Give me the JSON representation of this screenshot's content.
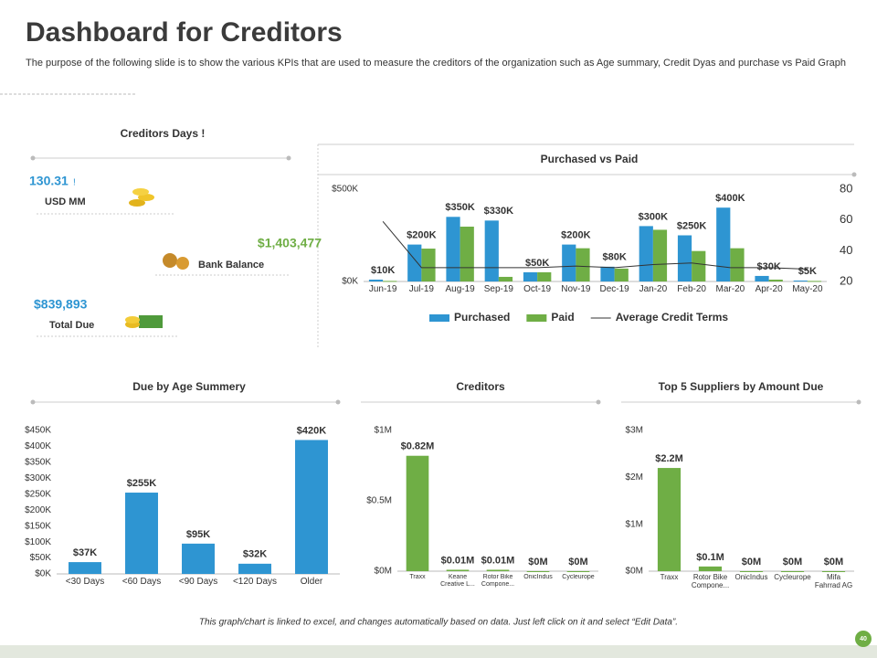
{
  "header": {
    "title": "Dashboard for Creditors",
    "subtitle": "The purpose of the following slide is to show the various KPIs that are used to measure the creditors of the organization such as Age summary, Credit Dyas and purchase vs Paid Graph"
  },
  "kpis": {
    "title": "Creditors Days !",
    "items": [
      {
        "value": "130.31",
        "mark": "!",
        "label": "USD MM"
      },
      {
        "value": "$1,403,477",
        "label": "Bank Balance"
      },
      {
        "value": "$839,893",
        "label": "Total Due"
      }
    ]
  },
  "chart_data": [
    {
      "type": "bar",
      "title": "Purchased vs Paid",
      "categories": [
        "Jun-19",
        "Jul-19",
        "Aug-19",
        "Sep-19",
        "Oct-19",
        "Nov-19",
        "Dec-19",
        "Jan-20",
        "Feb-20",
        "Mar-20",
        "Apr-20",
        "May-20"
      ],
      "series": [
        {
          "name": "Purchased",
          "color": "#2e95d2",
          "values": [
            10000,
            200000,
            350000,
            330000,
            50000,
            200000,
            80000,
            300000,
            250000,
            400000,
            30000,
            5000
          ],
          "value_labels": [
            "$10K",
            "$200K",
            "$350K",
            "$330K",
            "$50K",
            "$200K",
            "$80K",
            "$300K",
            "$250K",
            "$400K",
            "$30K",
            "$5K"
          ]
        },
        {
          "name": "Paid",
          "color": "#6fae45",
          "values": [
            3000,
            178000,
            297000,
            25000,
            50000,
            180000,
            70000,
            280000,
            165000,
            180000,
            10000,
            3000
          ]
        },
        {
          "name": "Average Credit Terms",
          "type": "line",
          "axis": "y2",
          "color": "#333333",
          "values": [
            59,
            29,
            29,
            29,
            29,
            30,
            29,
            31,
            32,
            29,
            29,
            28
          ]
        }
      ],
      "ylim": [
        0,
        500000
      ],
      "yticks": [
        {
          "value": 0,
          "label": "$0K"
        },
        {
          "value": 500000,
          "label": "$500K"
        }
      ],
      "y2lim": [
        20,
        80
      ],
      "y2ticks": [
        20,
        40,
        60,
        80
      ],
      "legend": "bottom"
    },
    {
      "type": "bar",
      "title": "Due by Age Summery",
      "categories": [
        "<30 Days",
        "<60 Days",
        "<90 Days",
        "<120 Days",
        "Older"
      ],
      "values": [
        37000,
        255000,
        95000,
        32000,
        420000
      ],
      "value_labels": [
        "$37K",
        "$255K",
        "$95K",
        "$32K",
        "$420K"
      ],
      "color": "#2e95d2",
      "ylim": [
        0,
        450000
      ],
      "yticks": [
        {
          "value": 0,
          "label": "$0K"
        },
        {
          "value": 50000,
          "label": "$50K"
        },
        {
          "value": 100000,
          "label": "$100K"
        },
        {
          "value": 150000,
          "label": "$150K"
        },
        {
          "value": 200000,
          "label": "$200K"
        },
        {
          "value": 250000,
          "label": "$250K"
        },
        {
          "value": 300000,
          "label": "$300K"
        },
        {
          "value": 350000,
          "label": "$350K"
        },
        {
          "value": 400000,
          "label": "$400K"
        },
        {
          "value": 450000,
          "label": "$450K"
        }
      ]
    },
    {
      "type": "bar",
      "title": "Creditors",
      "categories": [
        "Traxx",
        "Keane Creative L...",
        "Rotor Bike Compone...",
        "OnicIndus",
        "Cycleurope"
      ],
      "values": [
        820000,
        10000,
        10000,
        0,
        0
      ],
      "value_labels": [
        "$0.82M",
        "$0.01M",
        "$0.01M",
        "$0M",
        "$0M"
      ],
      "color": "#6fae45",
      "ylim": [
        0,
        1000000
      ],
      "yticks": [
        {
          "value": 0,
          "label": "$0M"
        },
        {
          "value": 500000,
          "label": "$0.5M"
        },
        {
          "value": 1000000,
          "label": "$1M"
        }
      ]
    },
    {
      "type": "bar",
      "title": "Top 5 Suppliers by Amount Due",
      "categories": [
        "Traxx",
        "Rotor Bike Compone...",
        "OnicIndus",
        "Cycleurope",
        "Mifa Fahrrad AG"
      ],
      "values": [
        2200000,
        100000,
        0,
        0,
        0
      ],
      "value_labels": [
        "$2.2M",
        "$0.1M",
        "$0M",
        "$0M",
        "$0M"
      ],
      "color": "#6fae45",
      "ylim": [
        0,
        3000000
      ],
      "yticks": [
        {
          "value": 0,
          "label": "$0M"
        },
        {
          "value": 1000000,
          "label": "$1M"
        },
        {
          "value": 2000000,
          "label": "$2M"
        },
        {
          "value": 3000000,
          "label": "$3M"
        }
      ]
    }
  ],
  "footer": {
    "note": "This graph/chart is linked to excel, and changes automatically based on data. Just left click on it and select “Edit Data”.",
    "page": "40"
  }
}
